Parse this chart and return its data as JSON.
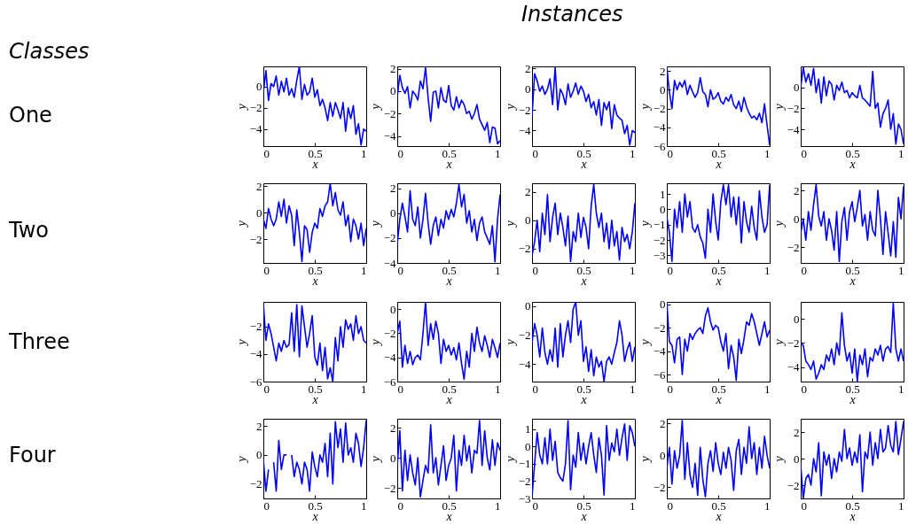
{
  "chart_data": [
    {
      "type": "other",
      "title": "Instances",
      "annotations": [
        "Classes",
        "One",
        "Two",
        "Three",
        "Four"
      ]
    },
    {
      "type": "line",
      "xlabel": "x",
      "ylabel": "y",
      "xlim": [
        0,
        1
      ],
      "xticks": [
        0,
        0.5,
        1
      ],
      "ylim": [
        -5.6,
        1.9
      ],
      "yticks": [
        -4,
        -2,
        0
      ],
      "x": [
        0,
        0.025,
        0.05,
        0.075,
        0.1,
        0.125,
        0.15,
        0.175,
        0.2,
        0.225,
        0.25,
        0.275,
        0.3,
        0.325,
        0.35,
        0.375,
        0.4,
        0.425,
        0.45,
        0.475,
        0.5,
        0.525,
        0.55,
        0.575,
        0.6,
        0.625,
        0.65,
        0.675,
        0.7,
        0.725,
        0.75,
        0.775,
        0.8,
        0.825,
        0.85,
        0.875,
        0.9,
        0.925,
        0.95,
        0.975,
        1
      ],
      "series": [
        {
          "color": "#0000ff",
          "values": [
            -0.5,
            1.5,
            -1.3,
            0.3,
            0,
            1,
            -0.8,
            0.5,
            -0.5,
            0.8,
            -0.8,
            -0.2,
            -1.0,
            0.6,
            1.9,
            -1.2,
            0.2,
            -0.8,
            -0.5,
            0.8,
            -1.0,
            -0.3,
            -1.8,
            -1.2,
            -2.0,
            -3.2,
            -1.5,
            -2.8,
            -1.5,
            -2.2,
            -3.0,
            -1.5,
            -4.2,
            -2.0,
            -3.0,
            -1.8,
            -4.5,
            -3.5,
            -5.5,
            -4.0,
            -4.2
          ]
        }
      ]
    },
    {
      "type": "line",
      "xlabel": "x",
      "ylabel": "y",
      "xlim": [
        0,
        1
      ],
      "xticks": [
        0,
        0.5,
        1
      ],
      "ylim": [
        -4.9,
        2.2
      ],
      "yticks": [
        -4,
        -2,
        0,
        2
      ],
      "x": [
        0,
        0.025,
        0.05,
        0.075,
        0.1,
        0.125,
        0.15,
        0.175,
        0.2,
        0.225,
        0.25,
        0.275,
        0.3,
        0.325,
        0.35,
        0.375,
        0.4,
        0.425,
        0.45,
        0.475,
        0.5,
        0.525,
        0.55,
        0.575,
        0.6,
        0.625,
        0.65,
        0.675,
        0.7,
        0.725,
        0.75,
        0.775,
        0.8,
        0.825,
        0.85,
        0.875,
        0.9,
        0.925,
        0.95,
        0.975,
        1
      ],
      "series": [
        {
          "color": "#0000ff",
          "values": [
            -0.5,
            1.4,
            0.3,
            -0.2,
            0.4,
            -1.5,
            0.0,
            -0.3,
            -0.8,
            0.9,
            0.2,
            2.1,
            -0.6,
            -2.7,
            -0.1,
            0.0,
            -1.5,
            0.3,
            -0.8,
            -1.0,
            0.5,
            -1.3,
            -1.7,
            -0.5,
            -1.5,
            -0.8,
            -1.2,
            -2.0,
            -1.8,
            -2.5,
            -2.0,
            -1.2,
            -2.5,
            -3.0,
            -3.5,
            -2.8,
            -4.6,
            -3.2,
            -3.3,
            -4.7,
            -4.4
          ]
        }
      ]
    },
    {
      "type": "line",
      "xlabel": "x",
      "ylabel": "y",
      "xlim": [
        0,
        1
      ],
      "xticks": [
        0,
        0.5,
        1
      ],
      "ylim": [
        -5.5,
        2.2
      ],
      "yticks": [
        -4,
        -2,
        0,
        2
      ],
      "x": [
        0,
        0.025,
        0.05,
        0.075,
        0.1,
        0.125,
        0.15,
        0.175,
        0.2,
        0.225,
        0.25,
        0.275,
        0.3,
        0.325,
        0.35,
        0.375,
        0.4,
        0.425,
        0.45,
        0.475,
        0.5,
        0.525,
        0.55,
        0.575,
        0.6,
        0.625,
        0.65,
        0.675,
        0.7,
        0.725,
        0.75,
        0.775,
        0.8,
        0.825,
        0.85,
        0.875,
        0.9,
        0.925,
        0.95,
        0.975,
        1
      ],
      "series": [
        {
          "color": "#0000ff",
          "values": [
            -2.6,
            1.5,
            0.8,
            -0.2,
            0.3,
            -0.5,
            0.0,
            1.0,
            -1.5,
            2.1,
            -2.0,
            0.0,
            -0.5,
            -1.5,
            0.5,
            -0.8,
            -0.2,
            0.6,
            -0.5,
            0.3,
            -0.2,
            -1.2,
            -0.5,
            -1.8,
            -1.2,
            -2.5,
            -1.0,
            -3.5,
            -1.3,
            -2.0,
            -1.2,
            -3.8,
            -1.5,
            -2.5,
            -2.8,
            -3.0,
            -4.3,
            -3.5,
            -5.4,
            -4.0,
            -4.2
          ]
        }
      ]
    },
    {
      "type": "line",
      "xlabel": "x",
      "ylabel": "y",
      "xlim": [
        0,
        1
      ],
      "xticks": [
        0,
        0.5,
        1
      ],
      "ylim": [
        -6,
        2.5
      ],
      "yticks": [
        -6,
        -4,
        -2,
        0,
        2
      ],
      "x": [
        0,
        0.025,
        0.05,
        0.075,
        0.1,
        0.125,
        0.15,
        0.175,
        0.2,
        0.225,
        0.25,
        0.275,
        0.3,
        0.325,
        0.35,
        0.375,
        0.4,
        0.425,
        0.45,
        0.475,
        0.5,
        0.525,
        0.55,
        0.575,
        0.6,
        0.625,
        0.65,
        0.675,
        0.7,
        0.725,
        0.75,
        0.775,
        0.8,
        0.825,
        0.85,
        0.875,
        0.9,
        0.925,
        0.95,
        0.975,
        1
      ],
      "series": [
        {
          "color": "#0000ff",
          "values": [
            2.4,
            -0.2,
            -2.0,
            1.0,
            0.0,
            0.8,
            0.3,
            1.0,
            -0.5,
            0.5,
            -0.2,
            -0.8,
            -0.3,
            1.3,
            -0.2,
            -0.5,
            -1.8,
            0.0,
            -1.0,
            -0.8,
            -0.3,
            -1.2,
            -1.5,
            -0.8,
            -1.2,
            -0.5,
            -1.6,
            -2.0,
            -1.2,
            -2.3,
            -0.8,
            -1.8,
            -2.5,
            -3.0,
            -2.8,
            -3.2,
            -2.5,
            -3.5,
            -1.5,
            -3.8,
            -5.9
          ]
        }
      ]
    },
    {
      "type": "line",
      "xlabel": "x",
      "ylabel": "y",
      "xlim": [
        0,
        1
      ],
      "xticks": [
        0,
        0.5,
        1
      ],
      "ylim": [
        -5.6,
        2.0
      ],
      "yticks": [
        -4,
        -2,
        0
      ],
      "x": [
        0,
        0.025,
        0.05,
        0.075,
        0.1,
        0.125,
        0.15,
        0.175,
        0.2,
        0.225,
        0.25,
        0.275,
        0.3,
        0.325,
        0.35,
        0.375,
        0.4,
        0.425,
        0.45,
        0.475,
        0.5,
        0.525,
        0.55,
        0.575,
        0.6,
        0.625,
        0.65,
        0.675,
        0.7,
        0.725,
        0.75,
        0.775,
        0.8,
        0.825,
        0.85,
        0.875,
        0.9,
        0.925,
        0.95,
        0.975,
        1
      ],
      "series": [
        {
          "color": "#0000ff",
          "values": [
            0.0,
            1.9,
            0.5,
            1.3,
            0.2,
            1.8,
            -0.5,
            0.8,
            -1.5,
            1.0,
            -0.8,
            0.6,
            0.3,
            -1.2,
            0.2,
            -0.3,
            0.5,
            -0.5,
            -0.3,
            -1.0,
            -0.5,
            -0.8,
            -1.0,
            0.2,
            -1.0,
            -1.2,
            -1.5,
            -1.8,
            1.5,
            -2.0,
            -1.5,
            -3.8,
            -2.5,
            -2.0,
            -1.2,
            -4.0,
            -2.5,
            -5.4,
            -3.5,
            -4.0,
            -5.4
          ]
        }
      ]
    },
    {
      "type": "line",
      "xlabel": "x",
      "ylabel": "y",
      "xlim": [
        0,
        1
      ],
      "xticks": [
        0,
        0.5,
        1
      ],
      "ylim": [
        -3.8,
        2.2
      ],
      "yticks": [
        -2,
        0,
        2
      ],
      "x": [
        0,
        0.025,
        0.05,
        0.075,
        0.1,
        0.125,
        0.15,
        0.175,
        0.2,
        0.225,
        0.25,
        0.275,
        0.3,
        0.325,
        0.35,
        0.375,
        0.4,
        0.425,
        0.45,
        0.475,
        0.5,
        0.525,
        0.55,
        0.575,
        0.6,
        0.625,
        0.65,
        0.675,
        0.7,
        0.725,
        0.75,
        0.775,
        0.8,
        0.825,
        0.85,
        0.875,
        0.9,
        0.925,
        0.95,
        0.975,
        1
      ],
      "series": [
        {
          "color": "#0000ff",
          "values": [
            -0.5,
            -1.2,
            0.3,
            -0.5,
            -1.0,
            -0.5,
            0.8,
            -0.3,
            1.0,
            -0.8,
            0.5,
            -0.2,
            -2.5,
            0.2,
            -1.5,
            -3.7,
            -1.0,
            -1.3,
            -3.0,
            -1.5,
            -0.8,
            -1.2,
            0.3,
            -0.3,
            0.5,
            0.8,
            2.2,
            0.5,
            1.5,
            0.2,
            -0.2,
            0.8,
            -1.0,
            -0.2,
            -2.2,
            -0.5,
            -1.0,
            -2.0,
            -0.8,
            -2.5,
            -1.2
          ]
        }
      ]
    },
    {
      "type": "line",
      "xlabel": "x",
      "ylabel": "y",
      "xlim": [
        0,
        1
      ],
      "xticks": [
        0,
        0.5,
        1
      ],
      "ylim": [
        -4,
        2.4
      ],
      "yticks": [
        -4,
        -2,
        0,
        2
      ],
      "x": [
        0,
        0.025,
        0.05,
        0.075,
        0.1,
        0.125,
        0.15,
        0.175,
        0.2,
        0.225,
        0.25,
        0.275,
        0.3,
        0.325,
        0.35,
        0.375,
        0.4,
        0.425,
        0.45,
        0.475,
        0.5,
        0.525,
        0.55,
        0.575,
        0.6,
        0.625,
        0.65,
        0.675,
        0.7,
        0.725,
        0.75,
        0.775,
        0.8,
        0.825,
        0.85,
        0.875,
        0.9,
        0.925,
        0.95,
        0.975,
        1
      ],
      "series": [
        {
          "color": "#0000ff",
          "values": [
            -2.5,
            -0.5,
            0.8,
            -0.3,
            -1.5,
            1.8,
            -0.5,
            -1.0,
            0.5,
            -2.0,
            -0.5,
            1.6,
            -0.8,
            -2.5,
            -1.0,
            -0.3,
            -1.8,
            -0.5,
            -1.2,
            0.2,
            -0.5,
            0.3,
            -0.3,
            0.8,
            2.3,
            0.5,
            1.5,
            -0.8,
            0.2,
            -1.5,
            -0.5,
            -2.2,
            -0.8,
            -0.3,
            -1.5,
            -2.0,
            -2.5,
            -1.0,
            -3.9,
            -0.5,
            1.5
          ]
        }
      ]
    },
    {
      "type": "line",
      "xlabel": "x",
      "ylabel": "y",
      "xlim": [
        0,
        1
      ],
      "xticks": [
        0,
        0.5,
        1
      ],
      "ylim": [
        -3,
        2.6
      ],
      "yticks": [
        -2,
        0,
        2
      ],
      "x": [
        0,
        0.025,
        0.05,
        0.075,
        0.1,
        0.125,
        0.15,
        0.175,
        0.2,
        0.225,
        0.25,
        0.275,
        0.3,
        0.325,
        0.35,
        0.375,
        0.4,
        0.425,
        0.45,
        0.475,
        0.5,
        0.525,
        0.55,
        0.575,
        0.6,
        0.625,
        0.65,
        0.675,
        0.7,
        0.725,
        0.75,
        0.775,
        0.8,
        0.825,
        0.85,
        0.875,
        0.9,
        0.925,
        0.95,
        0.975,
        1
      ],
      "series": [
        {
          "color": "#0000ff",
          "values": [
            -2.5,
            -1.5,
            0.0,
            -2.2,
            0.5,
            -1.0,
            1.8,
            -1.5,
            0.2,
            1.2,
            -1.0,
            0.5,
            -0.5,
            -1.8,
            0.3,
            -2.9,
            -0.8,
            -1.5,
            0.5,
            -1.2,
            0.2,
            -0.5,
            -2.0,
            1.0,
            2.5,
            0.5,
            -0.5,
            0.5,
            -1.5,
            -0.2,
            -2.0,
            0.0,
            -1.8,
            -0.8,
            -2.8,
            -0.5,
            -1.5,
            -1.0,
            -2.0,
            -0.8,
            1.2
          ]
        }
      ]
    },
    {
      "type": "line",
      "xlabel": "x",
      "ylabel": "y",
      "xlim": [
        0,
        1
      ],
      "xticks": [
        0,
        0.5,
        1
      ],
      "ylim": [
        -3.5,
        1.7
      ],
      "yticks": [
        -3,
        -2,
        -1,
        0,
        1
      ],
      "x": [
        0,
        0.025,
        0.05,
        0.075,
        0.1,
        0.125,
        0.15,
        0.175,
        0.2,
        0.225,
        0.25,
        0.275,
        0.3,
        0.325,
        0.35,
        0.375,
        0.4,
        0.425,
        0.45,
        0.475,
        0.5,
        0.525,
        0.55,
        0.575,
        0.6,
        0.625,
        0.65,
        0.675,
        0.7,
        0.725,
        0.75,
        0.775,
        0.8,
        0.825,
        0.85,
        0.875,
        0.9,
        0.925,
        0.95,
        0.975,
        1
      ],
      "series": [
        {
          "color": "#0000ff",
          "values": [
            -0.5,
            -1.5,
            -3.4,
            0.0,
            -1.2,
            0.5,
            -1.5,
            1.0,
            -0.5,
            0.5,
            -1.2,
            -1.5,
            -1.0,
            -1.8,
            -2.2,
            -3.2,
            0.0,
            -1.5,
            1.0,
            -0.8,
            -2.0,
            0.5,
            1.6,
            0.3,
            1.6,
            -0.5,
            0.8,
            -1.0,
            0.8,
            -2.2,
            0.5,
            -0.8,
            -1.5,
            0.2,
            -1.2,
            -2.0,
            1.2,
            -0.5,
            -1.5,
            -1.0,
            1.6
          ]
        }
      ]
    },
    {
      "type": "line",
      "xlabel": "x",
      "ylabel": "y",
      "xlim": [
        0,
        1
      ],
      "xticks": [
        0,
        0.5,
        1
      ],
      "ylim": [
        -3.1,
        2.5
      ],
      "yticks": [
        -2,
        0,
        2
      ],
      "x": [
        0,
        0.025,
        0.05,
        0.075,
        0.1,
        0.125,
        0.15,
        0.175,
        0.2,
        0.225,
        0.25,
        0.275,
        0.3,
        0.325,
        0.35,
        0.375,
        0.4,
        0.425,
        0.45,
        0.475,
        0.5,
        0.525,
        0.55,
        0.575,
        0.6,
        0.625,
        0.65,
        0.675,
        0.7,
        0.725,
        0.75,
        0.775,
        0.8,
        0.825,
        0.85,
        0.875,
        0.9,
        0.925,
        0.95,
        0.975,
        1
      ],
      "series": [
        {
          "color": "#0000ff",
          "values": [
            -1.0,
            0.0,
            -1.5,
            0.5,
            -0.8,
            1.0,
            2.4,
            0.2,
            -0.5,
            0.5,
            -1.5,
            0.0,
            -0.8,
            -2.2,
            0.5,
            -3.0,
            -0.2,
            0.8,
            -1.5,
            0.5,
            1.2,
            -0.2,
            0.8,
            2.0,
            -0.5,
            0.3,
            -1.5,
            0.5,
            -0.8,
            -1.2,
            2.0,
            0.0,
            -2.5,
            0.5,
            -1.0,
            -2.6,
            -0.2,
            -2.7,
            1.5,
            0.0,
            2.3
          ]
        }
      ]
    },
    {
      "type": "line",
      "xlabel": "x",
      "ylabel": "y",
      "xlim": [
        0,
        1
      ],
      "xticks": [
        0,
        0.5,
        1
      ],
      "ylim": [
        -6,
        -0.2
      ],
      "yticks": [
        -6,
        -4,
        -2
      ],
      "x": [
        0,
        0.025,
        0.05,
        0.075,
        0.1,
        0.125,
        0.15,
        0.175,
        0.2,
        0.225,
        0.25,
        0.275,
        0.3,
        0.325,
        0.35,
        0.375,
        0.4,
        0.425,
        0.45,
        0.475,
        0.5,
        0.525,
        0.55,
        0.575,
        0.6,
        0.625,
        0.65,
        0.675,
        0.7,
        0.725,
        0.75,
        0.775,
        0.8,
        0.825,
        0.85,
        0.875,
        0.9,
        0.925,
        0.95,
        0.975,
        1
      ],
      "series": [
        {
          "color": "#0000ff",
          "values": [
            -0.3,
            -3.0,
            -1.8,
            -2.5,
            -3.5,
            -4.5,
            -3.2,
            -3.8,
            -3.0,
            -3.5,
            -3.3,
            -1.0,
            -3.8,
            -0.4,
            -4.2,
            -0.5,
            -2.0,
            -3.5,
            -2.5,
            -1.2,
            -4.2,
            -4.8,
            -3.2,
            -5.2,
            -3.5,
            -5.8,
            -5.0,
            -6.0,
            -2.8,
            -4.5,
            -2.0,
            -3.5,
            -1.5,
            -2.2,
            -1.8,
            -3.0,
            -1.2,
            -2.5,
            -2.0,
            -3.0,
            -3.2
          ]
        }
      ]
    },
    {
      "type": "line",
      "xlabel": "x",
      "ylabel": "y",
      "xlim": [
        0,
        1
      ],
      "xticks": [
        0,
        0.5,
        1
      ],
      "ylim": [
        -6,
        0.6
      ],
      "yticks": [
        -6,
        -4,
        -2,
        0
      ],
      "x": [
        0,
        0.025,
        0.05,
        0.075,
        0.1,
        0.125,
        0.15,
        0.175,
        0.2,
        0.225,
        0.25,
        0.275,
        0.3,
        0.325,
        0.35,
        0.375,
        0.4,
        0.425,
        0.45,
        0.475,
        0.5,
        0.525,
        0.55,
        0.575,
        0.6,
        0.625,
        0.65,
        0.675,
        0.7,
        0.725,
        0.75,
        0.775,
        0.8,
        0.825,
        0.85,
        0.875,
        0.9,
        0.925,
        0.95,
        0.975,
        1
      ],
      "series": [
        {
          "color": "#0000ff",
          "values": [
            -2.0,
            -1.0,
            -4.8,
            -3.0,
            -4.5,
            -3.5,
            -4.6,
            -4.0,
            -3.8,
            -4.2,
            -2.0,
            0.6,
            -3.0,
            -1.2,
            -2.5,
            -1.0,
            -2.0,
            -4.5,
            -2.5,
            -3.5,
            -3.0,
            -3.8,
            -3.2,
            -4.2,
            -2.8,
            -4.5,
            -5.8,
            -3.5,
            -4.8,
            -2.0,
            -3.5,
            -1.5,
            -2.8,
            -3.5,
            -2.2,
            -3.0,
            -4.0,
            -2.5,
            -3.2,
            -4.0,
            -2.8
          ]
        }
      ]
    },
    {
      "type": "line",
      "xlabel": "x",
      "ylabel": "y",
      "xlim": [
        0,
        1
      ],
      "xticks": [
        0,
        0.5,
        1
      ],
      "ylim": [
        -5.2,
        0.3
      ],
      "yticks": [
        -4,
        -2,
        0
      ],
      "x": [
        0,
        0.025,
        0.05,
        0.075,
        0.1,
        0.125,
        0.15,
        0.175,
        0.2,
        0.225,
        0.25,
        0.275,
        0.3,
        0.325,
        0.35,
        0.375,
        0.4,
        0.425,
        0.45,
        0.475,
        0.5,
        0.525,
        0.55,
        0.575,
        0.6,
        0.625,
        0.65,
        0.675,
        0.7,
        0.725,
        0.75,
        0.775,
        0.8,
        0.825,
        0.85,
        0.875,
        0.9,
        0.925,
        0.95,
        0.975,
        1
      ],
      "series": [
        {
          "color": "#0000ff",
          "values": [
            -2.5,
            -1.2,
            -2.0,
            -3.5,
            -1.5,
            -3.2,
            -4.0,
            -3.0,
            -3.8,
            -1.5,
            -4.2,
            -1.2,
            -3.5,
            -2.0,
            -1.0,
            -2.5,
            -0.2,
            0.3,
            -2.0,
            -1.0,
            -3.8,
            -2.8,
            -4.5,
            -3.0,
            -4.8,
            -3.5,
            -4.2,
            -3.8,
            -5.2,
            -3.8,
            -3.5,
            -4.0,
            -3.2,
            -2.5,
            -1.0,
            -2.0,
            -3.8,
            -3.0,
            -2.5,
            -3.8,
            -2.8
          ]
        }
      ]
    },
    {
      "type": "line",
      "xlabel": "x",
      "ylabel": "y",
      "xlim": [
        0,
        1
      ],
      "xticks": [
        0,
        0.5,
        1
      ],
      "ylim": [
        -6.6,
        0.2
      ],
      "yticks": [
        -6,
        -4,
        -2,
        0
      ],
      "x": [
        0,
        0.025,
        0.05,
        0.075,
        0.1,
        0.125,
        0.15,
        0.175,
        0.2,
        0.225,
        0.25,
        0.275,
        0.3,
        0.325,
        0.35,
        0.375,
        0.4,
        0.425,
        0.45,
        0.475,
        0.5,
        0.525,
        0.55,
        0.575,
        0.6,
        0.625,
        0.65,
        0.675,
        0.7,
        0.725,
        0.75,
        0.775,
        0.8,
        0.825,
        0.85,
        0.875,
        0.9,
        0.925,
        0.95,
        0.975,
        1
      ],
      "series": [
        {
          "color": "#0000ff",
          "values": [
            0.2,
            -3.2,
            -3.5,
            -5.0,
            -3.0,
            -2.8,
            -6.0,
            -3.0,
            -4.0,
            -2.5,
            -3.0,
            -2.5,
            -2.2,
            -2.0,
            -2.5,
            -1.0,
            -0.3,
            -1.5,
            -2.2,
            -1.8,
            -2.0,
            -3.2,
            -4.0,
            -2.5,
            -5.5,
            -3.5,
            -4.5,
            -6.5,
            -3.0,
            -4.2,
            -3.0,
            -1.5,
            -1.8,
            -0.8,
            -1.5,
            -2.5,
            -3.5,
            -2.5,
            -1.5,
            -2.8,
            -2.2
          ]
        }
      ]
    },
    {
      "type": "line",
      "xlabel": "x",
      "ylabel": "y",
      "xlim": [
        0,
        1
      ],
      "xticks": [
        0,
        0.5,
        1
      ],
      "ylim": [
        -5.2,
        1.4
      ],
      "yticks": [
        -4,
        -2,
        0
      ],
      "x": [
        0,
        0.025,
        0.05,
        0.075,
        0.1,
        0.125,
        0.15,
        0.175,
        0.2,
        0.225,
        0.25,
        0.275,
        0.3,
        0.325,
        0.35,
        0.375,
        0.4,
        0.425,
        0.45,
        0.475,
        0.5,
        0.525,
        0.55,
        0.575,
        0.6,
        0.625,
        0.65,
        0.675,
        0.7,
        0.725,
        0.75,
        0.775,
        0.8,
        0.825,
        0.85,
        0.875,
        0.9,
        0.925,
        0.95,
        0.975,
        1
      ],
      "series": [
        {
          "color": "#0000ff",
          "values": [
            -2.0,
            -2.2,
            -3.5,
            -3.8,
            -4.2,
            -3.5,
            -5.0,
            -4.5,
            -3.8,
            -4.2,
            -3.0,
            -3.5,
            -2.5,
            -3.8,
            -2.0,
            -3.0,
            0.5,
            -2.2,
            -3.5,
            -2.8,
            -4.5,
            -2.5,
            -5.2,
            -3.0,
            -3.8,
            -2.5,
            -4.8,
            -3.2,
            -3.5,
            -2.5,
            -3.0,
            -2.2,
            -3.5,
            -2.5,
            -2.3,
            -2.8,
            1.3,
            -2.5,
            -3.5,
            -2.5,
            -3.5
          ]
        }
      ]
    },
    {
      "type": "line",
      "xlabel": "x",
      "ylabel": "y",
      "xlim": [
        0,
        1
      ],
      "xticks": [
        0,
        0.5,
        1
      ],
      "ylim": [
        -3,
        2.5
      ],
      "yticks": [
        -2,
        0,
        2
      ],
      "x": [
        0,
        0.025,
        0.05,
        0.075,
        0.1,
        0.125,
        0.15,
        0.175,
        0.2,
        0.225,
        0.25,
        0.275,
        0.3,
        0.325,
        0.35,
        0.375,
        0.4,
        0.425,
        0.45,
        0.475,
        0.5,
        0.525,
        0.55,
        0.575,
        0.6,
        0.625,
        0.65,
        0.675,
        0.7,
        0.725,
        0.75,
        0.775,
        0.8,
        0.825,
        0.85,
        0.875,
        0.9,
        0.925,
        0.95,
        0.975,
        1
      ],
      "series": [
        {
          "color": "#0000ff",
          "values": [
            -0.3,
            -2.5,
            -1.0,
            null,
            -0.5,
            -2.5,
            1.0,
            -1.0,
            0.0,
            0.0,
            null,
            0.0,
            -1.5,
            -0.5,
            -1.0,
            -2.0,
            -0.5,
            -1.0,
            -2.5,
            0.2,
            -0.8,
            -1.5,
            0.0,
            -0.5,
            0.8,
            -1.5,
            1.5,
            -2.0,
            2.3,
            0.5,
            1.8,
            -0.5,
            2.2,
            0.0,
            0.5,
            -0.5,
            1.5,
            0.8,
            -0.8,
            0.5,
            2.4
          ]
        }
      ]
    },
    {
      "type": "line",
      "xlabel": "x",
      "ylabel": "y",
      "xlim": [
        0,
        1
      ],
      "xticks": [
        0,
        0.5,
        1
      ],
      "ylim": [
        -2.7,
        2.6
      ],
      "yticks": [
        -2,
        0,
        2
      ],
      "x": [
        0,
        0.025,
        0.05,
        0.075,
        0.1,
        0.125,
        0.15,
        0.175,
        0.2,
        0.225,
        0.25,
        0.275,
        0.3,
        0.325,
        0.35,
        0.375,
        0.4,
        0.425,
        0.45,
        0.475,
        0.5,
        0.525,
        0.55,
        0.575,
        0.6,
        0.625,
        0.65,
        0.675,
        0.7,
        0.725,
        0.75,
        0.775,
        0.8,
        0.825,
        0.85,
        0.875,
        0.9,
        0.925,
        0.95,
        0.975,
        1
      ],
      "series": [
        {
          "color": "#0000ff",
          "values": [
            -0.5,
            1.8,
            -2.2,
            0.5,
            -1.5,
            0.2,
            -1.0,
            -1.8,
            0.0,
            -2.6,
            -1.5,
            -0.5,
            -1.0,
            2.2,
            -1.0,
            0.0,
            -1.8,
            -0.5,
            0.8,
            -1.5,
            -0.5,
            0.0,
            1.5,
            -2.2,
            0.5,
            -0.5,
            1.5,
            -0.2,
            0.8,
            -1.0,
            0.5,
            0.3,
            2.5,
            -0.5,
            1.8,
            0.0,
            -0.8,
            1.2,
            -0.5,
            1.0,
            0.5
          ]
        }
      ]
    },
    {
      "type": "line",
      "xlabel": "x",
      "ylabel": "y",
      "xlim": [
        0,
        1
      ],
      "xticks": [
        0,
        0.5,
        1
      ],
      "ylim": [
        -3,
        1.6
      ],
      "yticks": [
        -3,
        -2,
        -1,
        0,
        1
      ],
      "x": [
        0,
        0.025,
        0.05,
        0.075,
        0.1,
        0.125,
        0.15,
        0.175,
        0.2,
        0.225,
        0.25,
        0.275,
        0.3,
        0.325,
        0.35,
        0.375,
        0.4,
        0.425,
        0.45,
        0.475,
        0.5,
        0.525,
        0.55,
        0.575,
        0.6,
        0.625,
        0.65,
        0.675,
        0.7,
        0.725,
        0.75,
        0.775,
        0.8,
        0.825,
        0.85,
        0.875,
        0.9,
        0.925,
        0.95,
        0.975,
        1
      ],
      "series": [
        {
          "color": "#0000ff",
          "values": [
            -2.9,
            -1.0,
            0.8,
            -0.5,
            -1.0,
            0.5,
            -1.0,
            1.0,
            -0.8,
            0.3,
            -1.5,
            -1.8,
            -2.0,
            -1.0,
            1.5,
            -2.5,
            -0.5,
            -1.2,
            0.8,
            -0.8,
            0.2,
            -1.0,
            0.0,
            0.8,
            -0.5,
            -1.5,
            0.5,
            -0.5,
            -2.8,
            1.2,
            -0.8,
            0.2,
            -0.3,
            1.0,
            -0.5,
            0.5,
            1.3,
            -0.8,
            1.2,
            0.8,
            0.0
          ]
        }
      ]
    },
    {
      "type": "line",
      "xlabel": "x",
      "ylabel": "y",
      "xlim": [
        0,
        1
      ],
      "xticks": [
        0,
        0.5,
        1
      ],
      "ylim": [
        -2.7,
        2.3
      ],
      "yticks": [
        -2,
        0,
        2
      ],
      "x": [
        0,
        0.025,
        0.05,
        0.075,
        0.1,
        0.125,
        0.15,
        0.175,
        0.2,
        0.225,
        0.25,
        0.275,
        0.3,
        0.325,
        0.35,
        0.375,
        0.4,
        0.425,
        0.45,
        0.475,
        0.5,
        0.525,
        0.55,
        0.575,
        0.6,
        0.625,
        0.65,
        0.675,
        0.7,
        0.725,
        0.75,
        0.775,
        0.8,
        0.825,
        0.85,
        0.875,
        0.9,
        0.925,
        0.95,
        0.975,
        1
      ],
      "series": [
        {
          "color": "#0000ff",
          "values": [
            -0.8,
            0.5,
            -1.8,
            0.3,
            -0.8,
            0.0,
            2.2,
            -1.5,
            0.8,
            -1.2,
            -2.0,
            -0.5,
            -2.5,
            0.5,
            -1.5,
            -2.6,
            -0.5,
            0.3,
            -1.0,
            0.8,
            -0.5,
            -1.2,
            0.2,
            -0.8,
            0.5,
            -0.3,
            -2.2,
            0.3,
            1.0,
            -1.2,
            0.5,
            -0.5,
            1.8,
            -0.2,
            0.8,
            -1.2,
            0.5,
            -0.8,
            1.2,
            0.0,
            -0.8
          ]
        }
      ]
    },
    {
      "type": "line",
      "xlabel": "x",
      "ylabel": "y",
      "xlim": [
        0,
        1
      ],
      "xticks": [
        0,
        0.5,
        1
      ],
      "ylim": [
        -3,
        3
      ],
      "yticks": [
        -2,
        0,
        2
      ],
      "x": [
        0,
        0.025,
        0.05,
        0.075,
        0.1,
        0.125,
        0.15,
        0.175,
        0.2,
        0.225,
        0.25,
        0.275,
        0.3,
        0.325,
        0.35,
        0.375,
        0.4,
        0.425,
        0.45,
        0.475,
        0.5,
        0.525,
        0.55,
        0.575,
        0.6,
        0.625,
        0.65,
        0.675,
        0.7,
        0.725,
        0.75,
        0.775,
        0.8,
        0.825,
        0.85,
        0.875,
        0.9,
        0.925,
        0.95,
        0.975,
        1
      ],
      "series": [
        {
          "color": "#0000ff",
          "values": [
            -0.5,
            -3.0,
            -1.5,
            -1.2,
            -2.0,
            0.0,
            -1.0,
            1.2,
            -2.8,
            0.5,
            -0.5,
            0.3,
            -1.5,
            0.0,
            -1.0,
            0.5,
            -0.2,
            2.2,
            0.0,
            0.8,
            -0.5,
            0.5,
            -0.3,
            1.8,
            -2.5,
            0.5,
            0.0,
            2.0,
            -0.5,
            1.2,
            0.0,
            2.2,
            0.5,
            0.8,
            2.5,
            1.0,
            0.5,
            2.8,
            0.3,
            1.5,
            2.8
          ]
        }
      ]
    }
  ]
}
